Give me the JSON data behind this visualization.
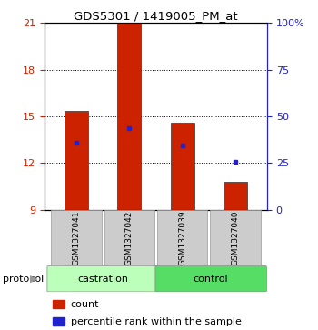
{
  "title": "GDS5301 / 1419005_PM_at",
  "samples": [
    "GSM1327041",
    "GSM1327042",
    "GSM1327039",
    "GSM1327040"
  ],
  "groups": [
    "castration",
    "castration",
    "control",
    "control"
  ],
  "bar_bottom": 9,
  "bar_tops": [
    15.35,
    21.0,
    14.6,
    10.8
  ],
  "percentile_values": [
    13.3,
    14.25,
    13.15,
    12.05
  ],
  "ylim_left": [
    9,
    21
  ],
  "ylim_right": [
    0,
    100
  ],
  "yticks_left": [
    9,
    12,
    15,
    18,
    21
  ],
  "yticks_right": [
    0,
    25,
    50,
    75,
    100
  ],
  "ytick_right_labels": [
    "0",
    "25",
    "50",
    "75",
    "100%"
  ],
  "bar_color": "#cc2200",
  "dot_color": "#2222cc",
  "castration_color": "#bbffbb",
  "control_color": "#55dd66",
  "sample_box_color": "#cccccc",
  "background_color": "#ffffff",
  "left_tick_color": "#cc2200",
  "right_tick_color": "#2222cc",
  "bar_width": 0.45
}
